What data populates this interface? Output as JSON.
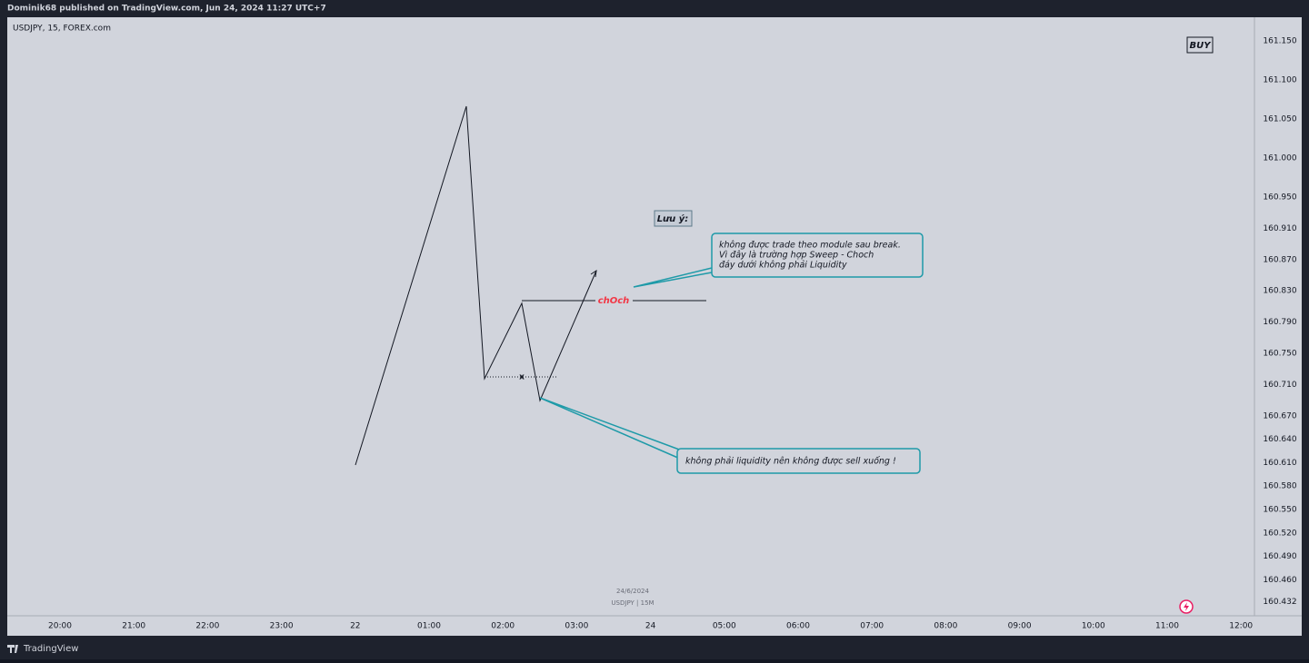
{
  "header": {
    "text": "Dominik68 published on TradingView.com, Jun 24, 2024 11:27 UTC+7"
  },
  "chart": {
    "symbol": "USDJPY, 15, FOREX.com",
    "price_axis": [
      "161.150",
      "161.100",
      "161.050",
      "161.000",
      "160.950",
      "160.910",
      "160.870",
      "160.830",
      "160.790",
      "160.750",
      "160.710",
      "160.670",
      "160.640",
      "160.610",
      "160.580",
      "160.550",
      "160.520",
      "160.490",
      "160.460",
      "160.432"
    ],
    "time_axis": [
      "20:00",
      "21:00",
      "22:00",
      "23:00",
      "22",
      "01:00",
      "02:00",
      "03:00",
      "24",
      "05:00",
      "06:00",
      "07:00",
      "08:00",
      "09:00",
      "10:00",
      "11:00",
      "12:00"
    ],
    "annotations": {
      "buy": "BUY",
      "note": "Lưu ý:",
      "choch": "chOch",
      "x_mark": "x",
      "callout_top": [
        "không được trade theo module sau break.",
        "Vì đây là trường hợp Sweep - Choch",
        "đáy dưới không phải Liquidity"
      ],
      "callout_bottom": "không phải liquidity nên không được sell xuống !"
    },
    "watermark": [
      "24/6/2024",
      "USDJPY | 15M"
    ]
  },
  "footer": {
    "brand": "TradingView"
  }
}
